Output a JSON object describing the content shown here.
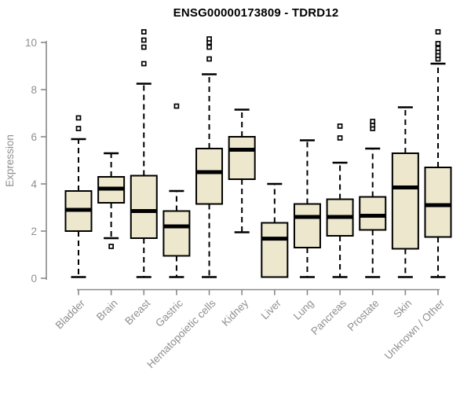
{
  "chart_data": {
    "type": "boxplot",
    "title": "ENSG00000173809 - TDRD12",
    "xlabel": "",
    "ylabel": "Expression",
    "ylim": [
      0,
      10
    ],
    "yticks": [
      0,
      2,
      4,
      6,
      8,
      10
    ],
    "grid": false,
    "legend": "none",
    "categories": [
      "Bladder",
      "Brain",
      "Breast",
      "Gastric",
      "Hematopoietic cells",
      "Kidney",
      "Liver",
      "Lung",
      "Pancreas",
      "Prostate",
      "Skin",
      "Unknown / Other"
    ],
    "series": [
      {
        "name": "Bladder",
        "whisker_low": 0.05,
        "q1": 2.0,
        "median": 2.9,
        "q3": 3.7,
        "whisker_high": 5.9,
        "outliers": [
          6.35,
          6.8
        ]
      },
      {
        "name": "Brain",
        "whisker_low": 1.7,
        "q1": 3.2,
        "median": 3.8,
        "q3": 4.3,
        "whisker_high": 5.3,
        "outliers": [
          1.35
        ]
      },
      {
        "name": "Breast",
        "whisker_low": 0.05,
        "q1": 1.7,
        "median": 2.85,
        "q3": 4.35,
        "whisker_high": 8.25,
        "outliers": [
          9.1,
          9.8,
          10.1,
          10.45
        ]
      },
      {
        "name": "Gastric",
        "whisker_low": 0.05,
        "q1": 0.95,
        "median": 2.2,
        "q3": 2.85,
        "whisker_high": 3.7,
        "outliers": [
          7.3
        ]
      },
      {
        "name": "Hematopoietic cells",
        "whisker_low": 0.05,
        "q1": 3.15,
        "median": 4.5,
        "q3": 5.5,
        "whisker_high": 8.65,
        "outliers": [
          9.3,
          9.8,
          10.0,
          10.15
        ]
      },
      {
        "name": "Kidney",
        "whisker_low": 1.95,
        "q1": 4.2,
        "median": 5.45,
        "q3": 6.0,
        "whisker_high": 7.15,
        "outliers": []
      },
      {
        "name": "Liver",
        "whisker_low": 0.05,
        "q1": 0.05,
        "median": 1.68,
        "q3": 2.35,
        "whisker_high": 4.0,
        "outliers": []
      },
      {
        "name": "Lung",
        "whisker_low": 0.05,
        "q1": 1.3,
        "median": 2.6,
        "q3": 3.15,
        "whisker_high": 5.85,
        "outliers": []
      },
      {
        "name": "Pancreas",
        "whisker_low": 0.05,
        "q1": 1.8,
        "median": 2.6,
        "q3": 3.35,
        "whisker_high": 4.9,
        "outliers": [
          5.95,
          6.45
        ]
      },
      {
        "name": "Prostate",
        "whisker_low": 0.05,
        "q1": 2.05,
        "median": 2.65,
        "q3": 3.45,
        "whisker_high": 5.5,
        "outliers": [
          6.35,
          6.5,
          6.65
        ]
      },
      {
        "name": "Skin",
        "whisker_low": 0.05,
        "q1": 1.25,
        "median": 3.85,
        "q3": 5.3,
        "whisker_high": 7.25,
        "outliers": []
      },
      {
        "name": "Unknown / Other",
        "whisker_low": 0.05,
        "q1": 1.75,
        "median": 3.1,
        "q3": 4.7,
        "whisker_high": 9.1,
        "outliers": [
          9.3,
          9.45,
          9.6,
          9.75,
          9.95,
          10.45
        ]
      }
    ],
    "colors": {
      "box_fill": "#ede8cd",
      "box_stroke": "#000000",
      "median": "#000000",
      "whisker": "#000000",
      "axis": "#898989",
      "tick_label": "#8f8f8f",
      "title": "#000000",
      "background": "#ffffff"
    }
  }
}
